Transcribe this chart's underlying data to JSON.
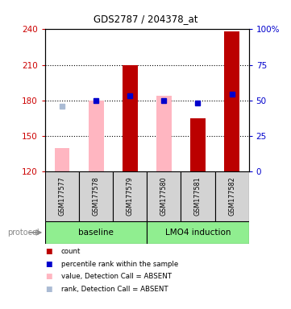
{
  "title": "GDS2787 / 204378_at",
  "samples": [
    "GSM177577",
    "GSM177578",
    "GSM177579",
    "GSM177580",
    "GSM177581",
    "GSM177582"
  ],
  "ylim_left": [
    120,
    240
  ],
  "ylim_right": [
    0,
    100
  ],
  "yticks_left": [
    120,
    150,
    180,
    210,
    240
  ],
  "yticks_right": [
    0,
    25,
    50,
    75,
    100
  ],
  "yticklabels_right": [
    "0",
    "25",
    "50",
    "75",
    "100%"
  ],
  "bar_bottom": 120,
  "absent_value_bars": {
    "GSM177577": 140,
    "GSM177578": 180,
    "GSM177580": 184
  },
  "absent_rank_markers": {
    "GSM177577": 175
  },
  "present_count_bars": {
    "GSM177579": 210,
    "GSM177581": 165,
    "GSM177582": 238
  },
  "present_rank_markers": {
    "GSM177578": 180,
    "GSM177579": 184,
    "GSM177580": 180,
    "GSM177581": 178,
    "GSM177582": 185
  },
  "absent_value_color": "#FFB6C1",
  "absent_rank_color": "#AABBD4",
  "present_count_color": "#BB0000",
  "present_rank_color": "#0000CC",
  "left_axis_color": "#CC0000",
  "right_axis_color": "#0000CC",
  "grid_ticks": [
    150,
    180,
    210
  ],
  "sample_box_color": "#D3D3D3",
  "protocol_box_color": "#90EE90",
  "groups": [
    {
      "label": "baseline",
      "start": 0,
      "end": 2
    },
    {
      "label": "LMO4 induction",
      "start": 3,
      "end": 5
    }
  ],
  "legend_items": [
    {
      "color": "#BB0000",
      "label": "count"
    },
    {
      "color": "#0000CC",
      "label": "percentile rank within the sample"
    },
    {
      "color": "#FFB6C1",
      "label": "value, Detection Call = ABSENT"
    },
    {
      "color": "#AABBD4",
      "label": "rank, Detection Call = ABSENT"
    }
  ]
}
